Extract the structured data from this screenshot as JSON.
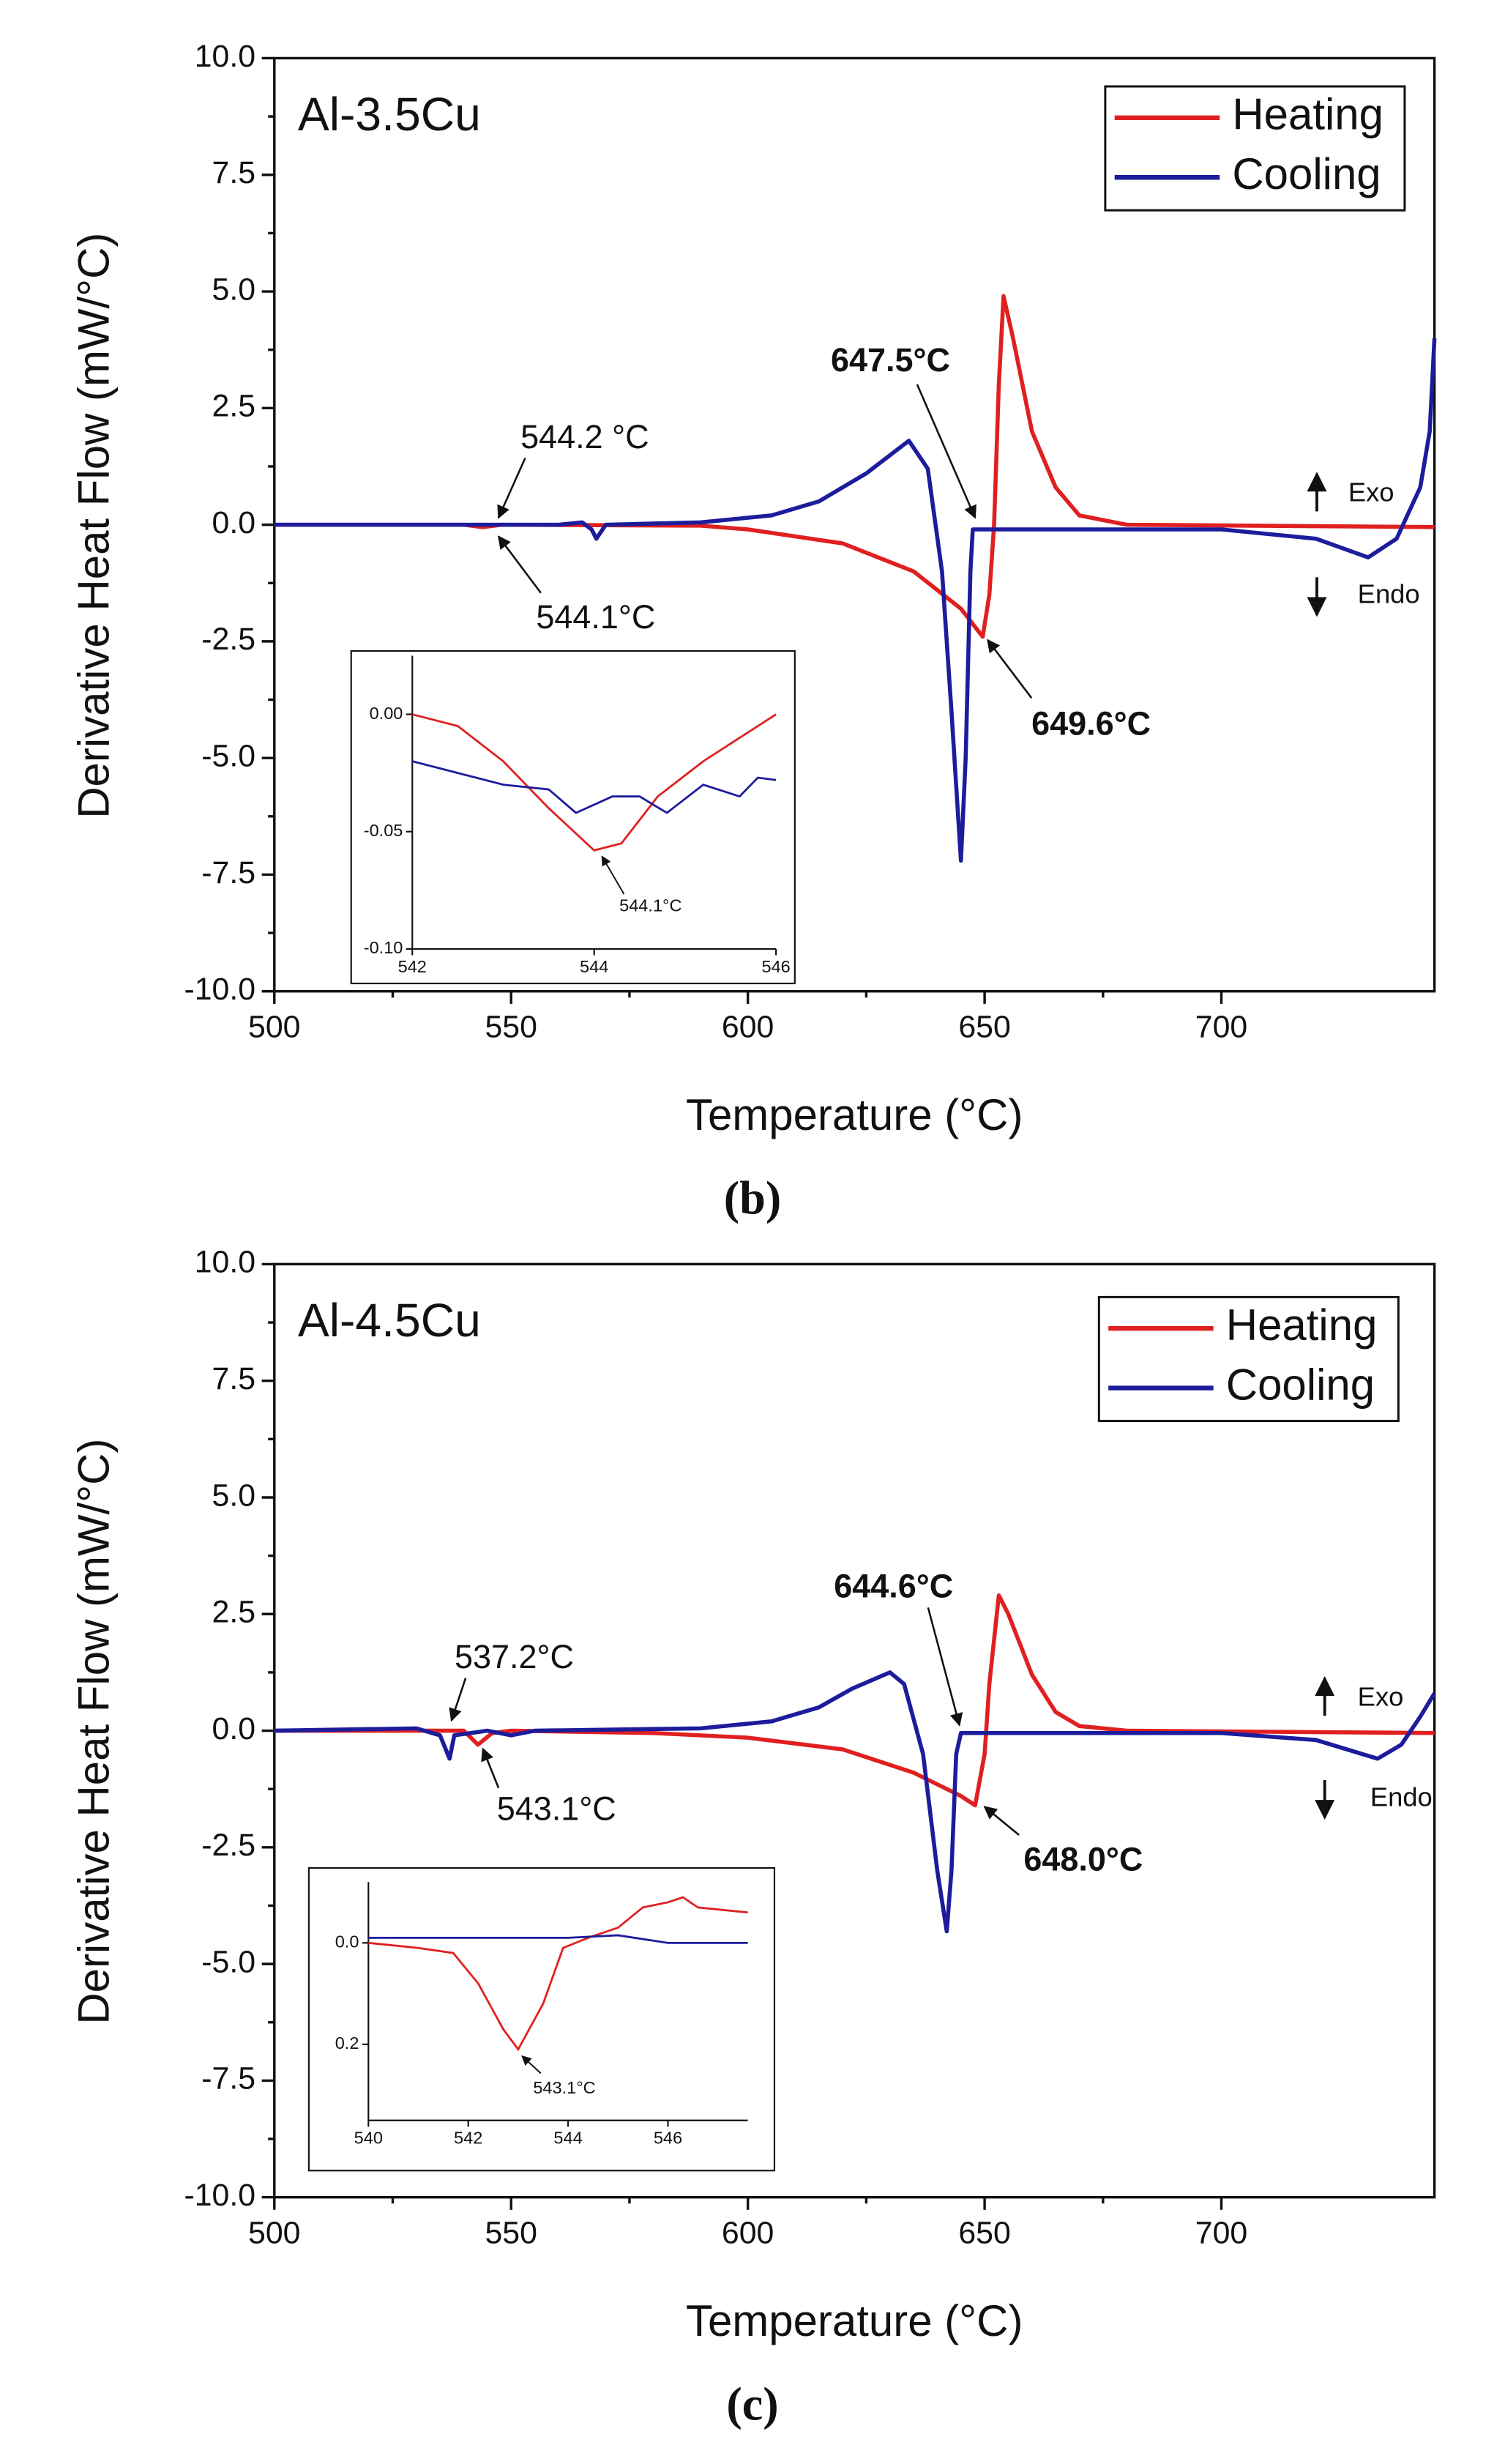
{
  "chart_data": [
    {
      "type": "line",
      "label": "Al-3.5Cu",
      "caption": "(b)",
      "xlabel": "Temperature (°C)",
      "ylabel": "Derivative Heat Flow (mW/°C)",
      "xlim": [
        500,
        745
      ],
      "ylim": [
        -10,
        10
      ],
      "xticks": [
        500,
        550,
        600,
        650,
        700
      ],
      "yticks": [
        {
          "value": -10,
          "label": "-10.0"
        },
        -7.5,
        {
          "value": -5,
          "label": "-5.0"
        },
        -2.5,
        {
          "value": 0,
          "label": "0.0"
        },
        2.5,
        {
          "value": 5,
          "label": "5.0"
        },
        7.5,
        {
          "value": 10,
          "label": "10.0"
        }
      ],
      "legend": "upper right",
      "series": [
        {
          "name": "Heating",
          "color": "#e02020",
          "x": [
            500,
            540,
            544,
            548,
            590,
            600,
            620,
            635,
            645,
            649.6,
            651,
            652,
            653,
            654,
            656,
            660,
            665,
            670,
            680,
            745
          ],
          "values": [
            0,
            0,
            -0.05,
            0,
            -0.02,
            -0.1,
            -0.4,
            -1.0,
            -1.8,
            -2.4,
            -1.5,
            0,
            3,
            4.9,
            4,
            2,
            0.8,
            0.2,
            0,
            -0.05
          ]
        },
        {
          "name": "Cooling",
          "color": "#1c1c9c",
          "x": [
            500,
            560,
            565,
            567,
            568,
            570,
            590,
            605,
            615,
            625,
            634,
            638,
            641,
            643,
            645,
            646,
            647,
            647.5,
            650,
            700,
            720,
            731,
            737,
            742,
            744,
            745
          ],
          "values": [
            0,
            0,
            0.05,
            -0.1,
            -0.3,
            0,
            0.05,
            0.2,
            0.5,
            1.1,
            1.8,
            1.2,
            -1,
            -4,
            -7.2,
            -5,
            -1,
            -0.1,
            -0.1,
            -0.1,
            -0.3,
            -0.7,
            -0.3,
            0.8,
            2,
            4
          ]
        }
      ],
      "annotations": [
        "647.5°C",
        "649.6°C",
        "544.2 °C",
        "544.1°C",
        "Exo",
        "Endo"
      ],
      "inset": {
        "type": "line",
        "xlim": [
          542,
          546
        ],
        "ylim": [
          -0.1,
          0.025
        ],
        "xticks": [
          542,
          544,
          546
        ],
        "yticks": [
          {
            "value": -0.1,
            "label": "-0.10"
          },
          {
            "value": -0.05,
            "label": "-0.05"
          },
          {
            "value": 0,
            "label": "0.00"
          }
        ],
        "series": [
          {
            "color": "#e02020",
            "x": [
              542,
              542.5,
              543,
              543.5,
              544,
              544.3,
              544.7,
              545.2,
              545.6,
              546
            ],
            "values": [
              0,
              -0.005,
              -0.02,
              -0.04,
              -0.058,
              -0.055,
              -0.035,
              -0.02,
              -0.01,
              0
            ]
          },
          {
            "color": "#1c1c9c",
            "x": [
              542,
              542.5,
              543,
              543.5,
              543.8,
              544.2,
              544.5,
              544.8,
              545.2,
              545.6,
              545.8,
              546
            ],
            "values": [
              -0.02,
              -0.025,
              -0.03,
              -0.032,
              -0.042,
              -0.035,
              -0.035,
              -0.042,
              -0.03,
              -0.035,
              -0.027,
              -0.028
            ]
          }
        ],
        "annotations": [
          "544.1°C"
        ]
      }
    },
    {
      "type": "line",
      "label": "Al-4.5Cu",
      "caption": "(c)",
      "xlabel": "Temperature (°C)",
      "ylabel": "Derivative Heat Flow (mW/°C)",
      "xlim": [
        500,
        745
      ],
      "ylim": [
        -10,
        10
      ],
      "xticks": [
        500,
        550,
        600,
        650,
        700
      ],
      "yticks": [
        {
          "value": -10,
          "label": "-10.0"
        },
        -7.5,
        {
          "value": -5,
          "label": "-5.0"
        },
        -2.5,
        {
          "value": 0,
          "label": "0.0"
        },
        2.5,
        {
          "value": 5,
          "label": "5.0"
        },
        7.5,
        {
          "value": 10,
          "label": "10.0"
        }
      ],
      "legend": "upper right",
      "series": [
        {
          "name": "Heating",
          "color": "#e02020",
          "x": [
            500,
            540,
            543,
            546,
            550,
            580,
            600,
            620,
            635,
            645,
            648,
            650,
            651,
            653,
            655,
            660,
            665,
            670,
            680,
            745
          ],
          "values": [
            0,
            0,
            -0.3,
            -0.05,
            0,
            -0.05,
            -0.15,
            -0.4,
            -0.9,
            -1.4,
            -1.6,
            -0.5,
            1,
            2.9,
            2.5,
            1.2,
            0.4,
            0.1,
            0,
            -0.05
          ]
        },
        {
          "name": "Cooling",
          "color": "#1c1c9c",
          "x": [
            500,
            530,
            535,
            537,
            538,
            545,
            550,
            555,
            590,
            605,
            615,
            622,
            630,
            633,
            637,
            640,
            642,
            643,
            644,
            645,
            700,
            720,
            733,
            738,
            742,
            745
          ],
          "values": [
            0,
            0.05,
            -0.1,
            -0.6,
            -0.1,
            0,
            -0.1,
            0,
            0.05,
            0.2,
            0.5,
            0.9,
            1.25,
            1.0,
            -0.5,
            -3,
            -4.3,
            -3,
            -0.5,
            -0.05,
            -0.05,
            -0.2,
            -0.6,
            -0.3,
            0.3,
            0.8
          ]
        }
      ],
      "annotations": [
        "644.6°C",
        "648.0°C",
        "537.2°C",
        "543.1°C",
        "Exo",
        "Endo"
      ],
      "inset": {
        "type": "line",
        "xlim": [
          540,
          547.6
        ],
        "ylim": [
          0.35,
          -0.12
        ],
        "xticks": [
          540,
          542,
          544,
          546
        ],
        "yticks": [
          {
            "value": 0,
            "label": "0.0"
          },
          0.2
        ],
        "series": [
          {
            "color": "#e02020",
            "x": [
              540,
              541,
              541.7,
              542.2,
              542.7,
              543,
              543.5,
              543.9,
              544.4,
              545,
              545.5,
              546,
              546.3,
              546.6,
              547.6
            ],
            "values": [
              0,
              0.01,
              0.02,
              0.08,
              0.17,
              0.21,
              0.12,
              0.01,
              -0.01,
              -0.03,
              -0.07,
              -0.08,
              -0.09,
              -0.07,
              -0.06
            ]
          },
          {
            "color": "#1c1c9c",
            "x": [
              540,
              542,
              544,
              545,
              546,
              547.6
            ],
            "values": [
              -0.01,
              -0.01,
              -0.01,
              -0.015,
              0,
              0
            ]
          }
        ],
        "annotations": [
          "543.1°C"
        ]
      }
    }
  ]
}
